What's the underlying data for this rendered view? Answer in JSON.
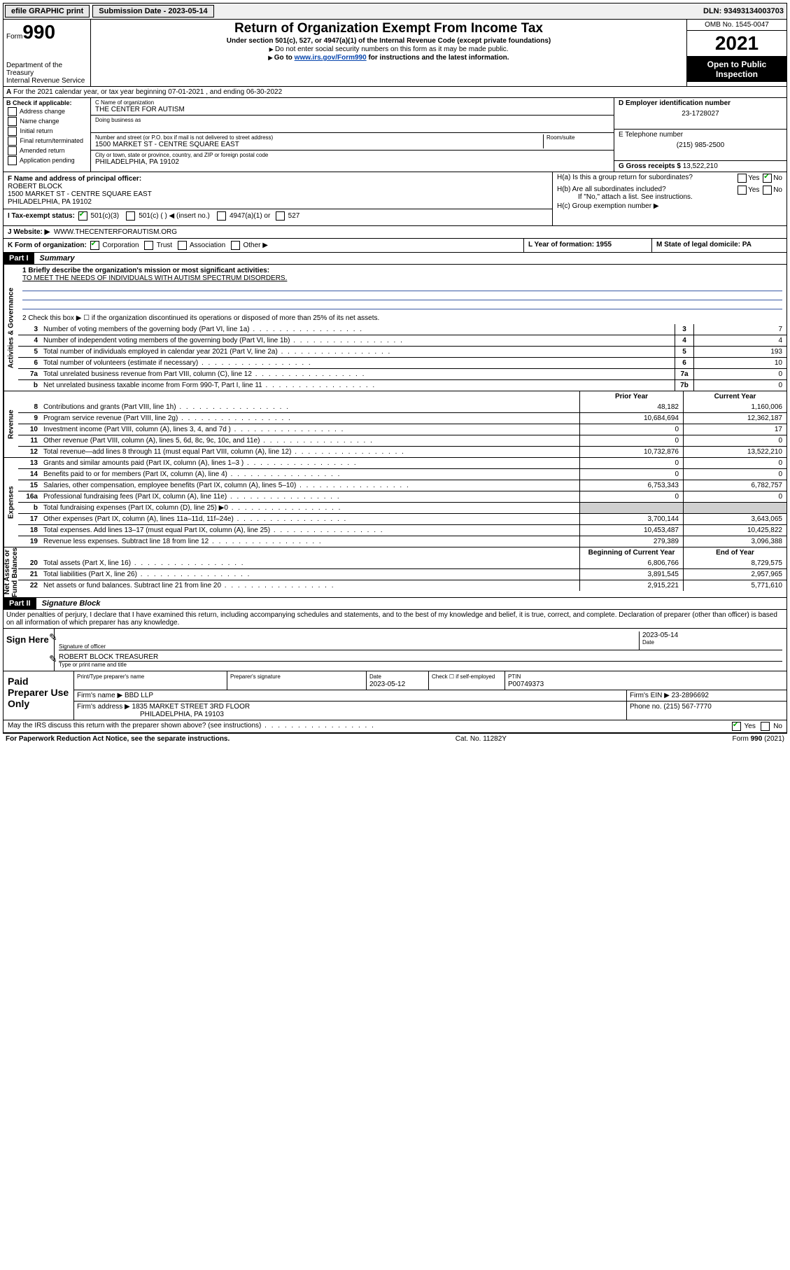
{
  "topbar": {
    "efile": "efile GRAPHIC print",
    "submission": "Submission Date - 2023-05-14",
    "dln": "DLN: 93493134003703"
  },
  "header": {
    "form_prefix": "Form",
    "form_num": "990",
    "title": "Return of Organization Exempt From Income Tax",
    "sub1": "Under section 501(c), 527, or 4947(a)(1) of the Internal Revenue Code (except private foundations)",
    "sub2": "Do not enter social security numbers on this form as it may be made public.",
    "sub3_a": "Go to ",
    "sub3_link": "www.irs.gov/Form990",
    "sub3_b": " for instructions and the latest information.",
    "dept": "Department of the Treasury\nInternal Revenue Service",
    "omb": "OMB No. 1545-0047",
    "year": "2021",
    "inspection": "Open to Public Inspection"
  },
  "line_a": "For the 2021 calendar year, or tax year beginning 07-01-2021   , and ending 06-30-2022",
  "box_b": {
    "label": "B Check if applicable:",
    "items": [
      "Address change",
      "Name change",
      "Initial return",
      "Final return/terminated",
      "Amended return",
      "Application pending"
    ]
  },
  "box_c": {
    "name_label": "C Name of organization",
    "name": "THE CENTER FOR AUTISM",
    "dba_label": "Doing business as",
    "street_label": "Number and street (or P.O. box if mail is not delivered to street address)",
    "room_label": "Room/suite",
    "street": "1500 MARKET ST - CENTRE SQUARE EAST",
    "city_label": "City or town, state or province, country, and ZIP or foreign postal code",
    "city": "PHILADELPHIA, PA  19102"
  },
  "box_d": {
    "label": "D Employer identification number",
    "value": "23-1728027"
  },
  "box_e": {
    "label": "E Telephone number",
    "value": "(215) 985-2500"
  },
  "box_g": {
    "label": "G Gross receipts $",
    "value": "13,522,210"
  },
  "box_f": {
    "label": "F  Name and address of principal officer:",
    "name": "ROBERT BLOCK",
    "addr1": "1500 MARKET ST - CENTRE SQUARE EAST",
    "addr2": "PHILADELPHIA, PA  19102"
  },
  "box_h": {
    "a": "H(a)  Is this a group return for subordinates?",
    "b": "H(b)  Are all subordinates included?",
    "b_note": "If \"No,\" attach a list. See instructions.",
    "c": "H(c)  Group exemption number ▶",
    "yes": "Yes",
    "no": "No"
  },
  "box_i": {
    "label": "I   Tax-exempt status:",
    "opts": [
      "501(c)(3)",
      "501(c) (  ) ◀ (insert no.)",
      "4947(a)(1) or",
      "527"
    ]
  },
  "box_j": {
    "label": "J   Website: ▶",
    "value": "WWW.THECENTERFORAUTISM.ORG"
  },
  "box_k": {
    "label": "K Form of organization:",
    "opts": [
      "Corporation",
      "Trust",
      "Association",
      "Other ▶"
    ]
  },
  "box_l": {
    "label": "L Year of formation: 1955"
  },
  "box_m": {
    "label": "M State of legal domicile: PA"
  },
  "part1": {
    "tag": "Part I",
    "title": "Summary"
  },
  "mission": {
    "label": "1   Briefly describe the organization's mission or most significant activities:",
    "text": "TO MEET THE NEEDS OF INDIVIDUALS WITH AUTISM SPECTRUM DISORDERS."
  },
  "line2": "2   Check this box ▶ ☐  if the organization discontinued its operations or disposed of more than 25% of its net assets.",
  "gov_rows": [
    {
      "n": "3",
      "t": "Number of voting members of the governing body (Part VI, line 1a)",
      "rn": "3",
      "v": "7"
    },
    {
      "n": "4",
      "t": "Number of independent voting members of the governing body (Part VI, line 1b)",
      "rn": "4",
      "v": "4"
    },
    {
      "n": "5",
      "t": "Total number of individuals employed in calendar year 2021 (Part V, line 2a)",
      "rn": "5",
      "v": "193"
    },
    {
      "n": "6",
      "t": "Total number of volunteers (estimate if necessary)",
      "rn": "6",
      "v": "10"
    },
    {
      "n": "7a",
      "t": "Total unrelated business revenue from Part VIII, column (C), line 12",
      "rn": "7a",
      "v": "0"
    },
    {
      "n": "b",
      "t": "Net unrelated business taxable income from Form 990-T, Part I, line 11",
      "rn": "7b",
      "v": "0"
    }
  ],
  "two_col_head": {
    "prior": "Prior Year",
    "current": "Current Year",
    "boy": "Beginning of Current Year",
    "eoy": "End of Year"
  },
  "rev_rows": [
    {
      "n": "8",
      "t": "Contributions and grants (Part VIII, line 1h)",
      "p": "48,182",
      "c": "1,160,006"
    },
    {
      "n": "9",
      "t": "Program service revenue (Part VIII, line 2g)",
      "p": "10,684,694",
      "c": "12,362,187"
    },
    {
      "n": "10",
      "t": "Investment income (Part VIII, column (A), lines 3, 4, and 7d )",
      "p": "0",
      "c": "17"
    },
    {
      "n": "11",
      "t": "Other revenue (Part VIII, column (A), lines 5, 6d, 8c, 9c, 10c, and 11e)",
      "p": "0",
      "c": "0"
    },
    {
      "n": "12",
      "t": "Total revenue—add lines 8 through 11 (must equal Part VIII, column (A), line 12)",
      "p": "10,732,876",
      "c": "13,522,210"
    }
  ],
  "exp_rows": [
    {
      "n": "13",
      "t": "Grants and similar amounts paid (Part IX, column (A), lines 1–3 )",
      "p": "0",
      "c": "0"
    },
    {
      "n": "14",
      "t": "Benefits paid to or for members (Part IX, column (A), line 4)",
      "p": "0",
      "c": "0"
    },
    {
      "n": "15",
      "t": "Salaries, other compensation, employee benefits (Part IX, column (A), lines 5–10)",
      "p": "6,753,343",
      "c": "6,782,757"
    },
    {
      "n": "16a",
      "t": "Professional fundraising fees (Part IX, column (A), line 11e)",
      "p": "0",
      "c": "0"
    },
    {
      "n": "b",
      "t": "Total fundraising expenses (Part IX, column (D), line 25) ▶0",
      "p": "",
      "c": "",
      "shade": true
    },
    {
      "n": "17",
      "t": "Other expenses (Part IX, column (A), lines 11a–11d, 11f–24e)",
      "p": "3,700,144",
      "c": "3,643,065"
    },
    {
      "n": "18",
      "t": "Total expenses. Add lines 13–17 (must equal Part IX, column (A), line 25)",
      "p": "10,453,487",
      "c": "10,425,822"
    },
    {
      "n": "19",
      "t": "Revenue less expenses. Subtract line 18 from line 12",
      "p": "279,389",
      "c": "3,096,388"
    }
  ],
  "net_rows": [
    {
      "n": "20",
      "t": "Total assets (Part X, line 16)",
      "p": "6,806,766",
      "c": "8,729,575"
    },
    {
      "n": "21",
      "t": "Total liabilities (Part X, line 26)",
      "p": "3,891,545",
      "c": "2,957,965"
    },
    {
      "n": "22",
      "t": "Net assets or fund balances. Subtract line 21 from line 20",
      "p": "2,915,221",
      "c": "5,771,610"
    }
  ],
  "vtabs": {
    "gov": "Activities & Governance",
    "rev": "Revenue",
    "exp": "Expenses",
    "net": "Net Assets or\nFund Balances"
  },
  "part2": {
    "tag": "Part II",
    "title": "Signature Block"
  },
  "sig": {
    "penalty": "Under penalties of perjury, I declare that I have examined this return, including accompanying schedules and statements, and to the best of my knowledge and belief, it is true, correct, and complete. Declaration of preparer (other than officer) is based on all information of which preparer has any knowledge.",
    "sign_here": "Sign Here",
    "sig_officer": "Signature of officer",
    "date": "Date",
    "date_val": "2023-05-14",
    "name_title": "ROBERT BLOCK  TREASURER",
    "type_name": "Type or print name and title"
  },
  "preparer": {
    "label": "Paid Preparer Use Only",
    "h": [
      "Print/Type preparer's name",
      "Preparer's signature",
      "Date",
      "Check ☐ if self-employed",
      "PTIN"
    ],
    "date": "2023-05-12",
    "ptin": "P00749373",
    "firm_name_l": "Firm's name      ▶",
    "firm_name": "BBD LLP",
    "firm_ein_l": "Firm's EIN ▶",
    "firm_ein": "23-2896692",
    "firm_addr_l": "Firm's address ▶",
    "firm_addr1": "1835 MARKET STREET 3RD FLOOR",
    "firm_addr2": "PHILADELPHIA, PA  19103",
    "phone_l": "Phone no.",
    "phone": "(215) 567-7770"
  },
  "discuss": "May the IRS discuss this return with the preparer shown above? (see instructions)",
  "footer": {
    "left": "For Paperwork Reduction Act Notice, see the separate instructions.",
    "mid": "Cat. No. 11282Y",
    "right": "Form 990 (2021)"
  }
}
